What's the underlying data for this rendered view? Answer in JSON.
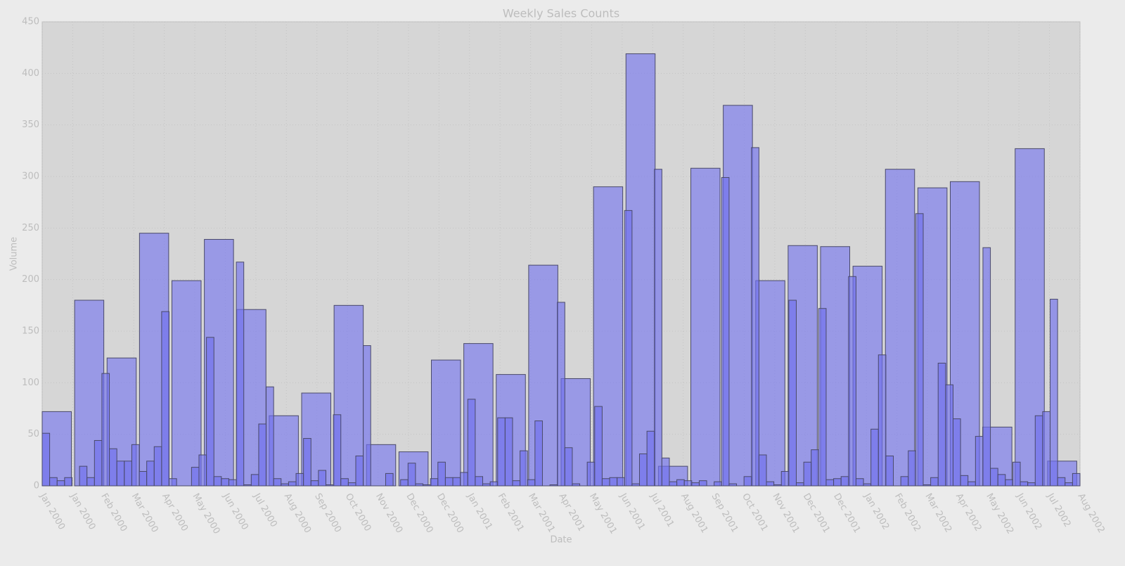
{
  "chart_data": {
    "type": "bar",
    "title": "Weekly Sales Counts",
    "x_label": "Date",
    "y_label": "Volume",
    "xticks": [
      "Jan 2000",
      "Jan 2000",
      "Feb 2000",
      "Mar 2000",
      "Apr 2000",
      "May 2000",
      "Jun 2000",
      "Jul 2000",
      "Aug 2000",
      "Sep 2000",
      "Oct 2000",
      "Nov 2000",
      "Dec 2000",
      "Dec 2000",
      "Jan 2001",
      "Feb 2001",
      "Mar 2001",
      "Apr 2001",
      "May 2001",
      "Jun 2001",
      "Jul 2001",
      "Aug 2001",
      "Sep 2001",
      "Oct 2001",
      "Nov 2001",
      "Dec 2001",
      "Dec 2001",
      "Jan 2002",
      "Feb 2002",
      "Mar 2002",
      "Apr 2002",
      "May 2002",
      "Jun 2002",
      "Jul 2002",
      "Aug 2002"
    ],
    "series": [
      {
        "color": "#7878ee",
        "values": [
          72,
          180,
          124,
          245,
          199,
          239,
          171,
          68,
          90,
          175,
          40,
          33,
          122,
          138,
          108,
          214,
          104,
          290,
          419,
          19,
          308,
          369,
          199,
          233,
          232,
          213,
          307,
          289,
          295,
          57,
          327,
          24
        ]
      },
      {
        "color": "#7070ee",
        "values": [
          51,
          8,
          5,
          8,
          0,
          19,
          8,
          44,
          109,
          36,
          24,
          24,
          40,
          14,
          24,
          38,
          169,
          7,
          0,
          0,
          18,
          30,
          144,
          9,
          7,
          6,
          217,
          1,
          11,
          60,
          96,
          7,
          2,
          4,
          12,
          46,
          5,
          15,
          1,
          69,
          7,
          3,
          29,
          136,
          0,
          0,
          12,
          0,
          6,
          22,
          2,
          1,
          7,
          23,
          8,
          8,
          13,
          84,
          9,
          2,
          4,
          66,
          66,
          5,
          34,
          6,
          63,
          0,
          1,
          178,
          37,
          2,
          0,
          23,
          77,
          7,
          8,
          8,
          267,
          2,
          31,
          53,
          307,
          27,
          4,
          6,
          5,
          3,
          5,
          0,
          4,
          299,
          2,
          0,
          9,
          328,
          30,
          4,
          1,
          14,
          180,
          3,
          23,
          35,
          172,
          6,
          7,
          9,
          203,
          7,
          2,
          55,
          127,
          29,
          0,
          9,
          34,
          264,
          1,
          8,
          119,
          98,
          65,
          10,
          4,
          48,
          231,
          17,
          11,
          6,
          23,
          4,
          3,
          68,
          72,
          181,
          8,
          3,
          12
        ]
      }
    ],
    "ylim": [
      0,
      450
    ],
    "yticks": [
      0,
      50,
      100,
      150,
      200,
      250,
      300,
      350,
      400,
      450
    ],
    "grid": true
  }
}
